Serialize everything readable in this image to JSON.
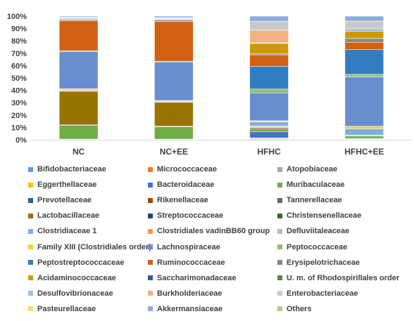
{
  "chart_data": {
    "type": "bar",
    "stacked": true,
    "percent": true,
    "categories": [
      "NC",
      "NC+EE",
      "HFHC",
      "HFHC+EE"
    ],
    "y_ticks": [
      "0%",
      "10%",
      "20%",
      "30%",
      "40%",
      "50%",
      "60%",
      "70%",
      "80%",
      "90%",
      "100%"
    ],
    "ylim": [
      0,
      100
    ],
    "grid": false,
    "legend_position": "bottom",
    "series": [
      {
        "name": "Bifidobacteriaceae",
        "color": "#5B9BD5",
        "values": [
          0.3,
          0.3,
          0.5,
          0.3
        ]
      },
      {
        "name": "Micrococcaceae",
        "color": "#ED7D31",
        "values": [
          0,
          0,
          0,
          0
        ]
      },
      {
        "name": "Atopobiaceae",
        "color": "#A5A5A5",
        "values": [
          0,
          0,
          0.5,
          0.3
        ]
      },
      {
        "name": "Eggerthellaceae",
        "color": "#FFC000",
        "values": [
          0,
          0,
          0.5,
          0
        ]
      },
      {
        "name": "Bacteroidaceae",
        "color": "#4472C4",
        "values": [
          0.2,
          0.2,
          5,
          0.5
        ]
      },
      {
        "name": "Muribaculaceae",
        "color": "#70AD47",
        "values": [
          11,
          10,
          2,
          2
        ]
      },
      {
        "name": "Prevotellaceae",
        "color": "#255E91",
        "values": [
          0.5,
          0.5,
          0,
          0.3
        ]
      },
      {
        "name": "Rikenellaceae",
        "color": "#9E480E",
        "values": [
          0,
          0,
          1,
          0
        ]
      },
      {
        "name": "Tannerellaceae",
        "color": "#636363",
        "values": [
          0,
          0,
          0.5,
          0
        ]
      },
      {
        "name": "Lactobacillaceae",
        "color": "#997300",
        "values": [
          27,
          19,
          0.5,
          0
        ]
      },
      {
        "name": "Streptococcaceae",
        "color": "#264478",
        "values": [
          0.5,
          0.5,
          0,
          0
        ]
      },
      {
        "name": "Christensenellaceae",
        "color": "#43682B",
        "values": [
          0.5,
          0.5,
          0.5,
          0.5
        ]
      },
      {
        "name": "Clostridiaceae 1",
        "color": "#7CAFDD",
        "values": [
          0,
          0,
          3,
          5
        ]
      },
      {
        "name": "Clostridiales vadinBB60 group",
        "color": "#F1975A",
        "values": [
          0,
          0,
          0.5,
          0
        ]
      },
      {
        "name": "Defluviitaleaceae",
        "color": "#B7B7B7",
        "values": [
          0,
          0,
          0.5,
          0
        ]
      },
      {
        "name": "Family XIII (Clostridiales order)",
        "color": "#FFCD33",
        "values": [
          1,
          0.5,
          0,
          2
        ]
      },
      {
        "name": "Lachnospiraceae",
        "color": "#698ED0",
        "values": [
          30,
          31,
          22,
          40
        ]
      },
      {
        "name": "Peptococcaceae",
        "color": "#8CC168",
        "values": [
          0.5,
          0.5,
          3,
          2
        ]
      },
      {
        "name": "Peptostreptococcaceae",
        "color": "#327DC2",
        "values": [
          0,
          0,
          18,
          20
        ]
      },
      {
        "name": "Ruminococcaceae",
        "color": "#D26012",
        "values": [
          24,
          32,
          9,
          6
        ]
      },
      {
        "name": "Erysipelotrichaceae",
        "color": "#848484",
        "values": [
          1,
          1,
          1,
          3
        ]
      },
      {
        "name": "Acidaminococcaceae",
        "color": "#CC9A00",
        "values": [
          0,
          0,
          8,
          6
        ]
      },
      {
        "name": "Saccharimonadaceae",
        "color": "#335AA1",
        "values": [
          0.5,
          0.5,
          0,
          0
        ]
      },
      {
        "name": "U. m. of Rhodospirillales order",
        "color": "#5A8A39",
        "values": [
          0.5,
          0.5,
          0,
          0
        ]
      },
      {
        "name": "Desulfovibrionaceae",
        "color": "#9DC3E6",
        "values": [
          0.5,
          0.5,
          0.5,
          2
        ]
      },
      {
        "name": "Burkholderiaceae",
        "color": "#F4B183",
        "values": [
          0,
          0,
          10,
          0
        ]
      },
      {
        "name": "Enterobacteriaceae",
        "color": "#C9C9C9",
        "values": [
          0.5,
          0.5,
          7,
          6
        ]
      },
      {
        "name": "Pasteurellaceae",
        "color": "#FFD966",
        "values": [
          0,
          0,
          0,
          0.1
        ]
      },
      {
        "name": "Akkermansiaceae",
        "color": "#8FAADC",
        "values": [
          0.8,
          1.2,
          4,
          4
        ]
      },
      {
        "name": "Others",
        "color": "#A9D18E",
        "values": [
          0,
          0,
          0,
          0
        ]
      }
    ]
  }
}
